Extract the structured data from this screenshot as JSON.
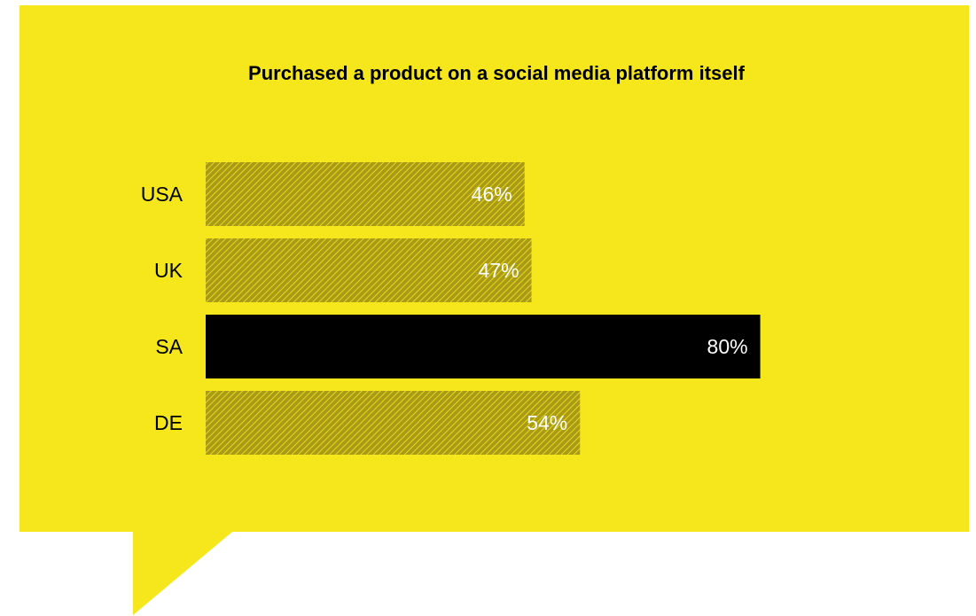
{
  "colors": {
    "background": "#f6e71c",
    "highlight_bar": "#000000",
    "hatch_bar_base": "#a99b17",
    "hatch_bar_stripe": "#f6e71c",
    "title": "#000000",
    "category_label": "#000000",
    "value_label": "#ffffff"
  },
  "chart_data": {
    "type": "bar",
    "orientation": "horizontal",
    "title": "Purchased a product on a social media platform itself",
    "categories": [
      "USA",
      "UK",
      "SA",
      "DE"
    ],
    "values": [
      46,
      47,
      80,
      54
    ],
    "value_labels": [
      "46%",
      "47%",
      "80%",
      "54%"
    ],
    "highlighted": [
      "SA"
    ],
    "xlim": [
      0,
      100
    ],
    "unit": "%",
    "grid": false,
    "legend": "none"
  }
}
